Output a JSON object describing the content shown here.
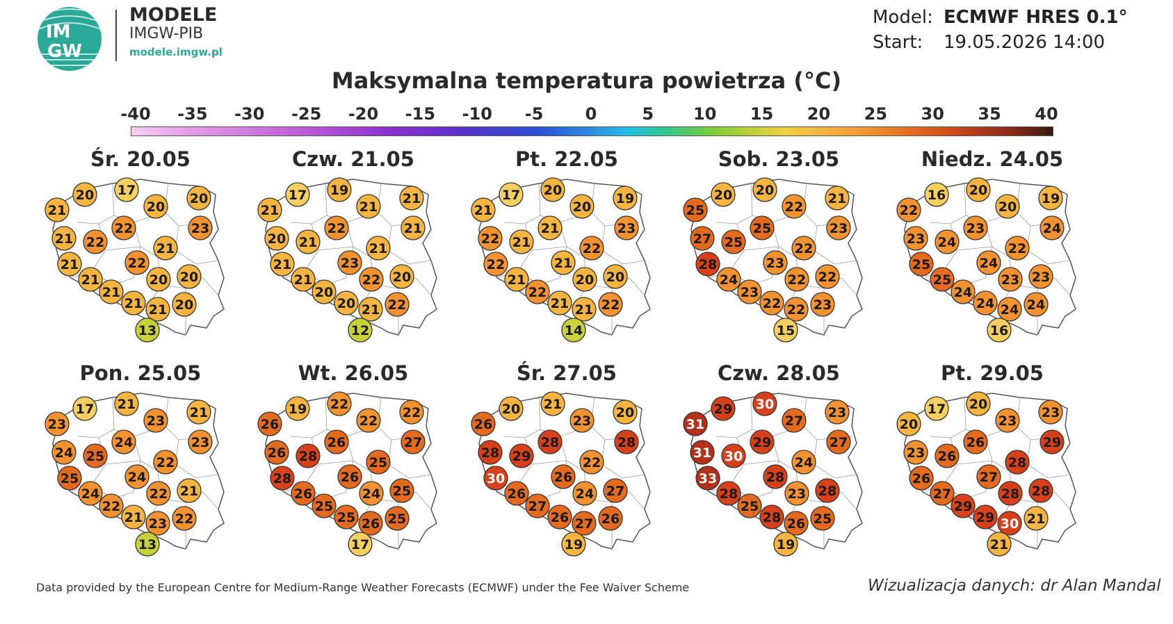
{
  "header": {
    "logo_text_top": "IM",
    "logo_text_bottom": "GW",
    "brand_title": "MODELE",
    "brand_subtitle": "IMGW-PIB",
    "brand_url": "modele.imgw.pl",
    "model_label": "Model:",
    "model_value": "ECMWF HRES 0.1°",
    "start_label": "Start:",
    "start_value": "19.05.2026 14:00"
  },
  "title": "Maksymalna temperatura powietrza (°C)",
  "legend": {
    "ticks": [
      "-40",
      "-35",
      "-30",
      "-25",
      "-20",
      "-15",
      "-10",
      "-5",
      "0",
      "5",
      "10",
      "15",
      "20",
      "25",
      "30",
      "35",
      "40"
    ]
  },
  "colors": {
    "temp_cold": "#c9d13a",
    "temp_cool": "#f5d060",
    "temp_mild": "#f5b540",
    "temp_warm": "#f29230",
    "temp_hot": "#e36a1e",
    "temp_very_hot": "#d6401a",
    "temp_extreme": "#b3311a",
    "country_fill": "#ffffff",
    "border": "#9a9a9a"
  },
  "days": [
    {
      "label": "Śr. 20.05",
      "temps": [
        21,
        20,
        17,
        20,
        20,
        21,
        22,
        22,
        21,
        21,
        22,
        23,
        21,
        20,
        20,
        21,
        21,
        21,
        20,
        13
      ]
    },
    {
      "label": "Czw. 21.05",
      "temps": [
        21,
        17,
        19,
        21,
        21,
        20,
        21,
        22,
        21,
        21,
        23,
        21,
        21,
        22,
        20,
        20,
        20,
        21,
        22,
        12
      ]
    },
    {
      "label": "Pt. 22.05",
      "temps": [
        21,
        17,
        20,
        20,
        19,
        22,
        21,
        21,
        22,
        22,
        21,
        23,
        21,
        20,
        20,
        22,
        21,
        21,
        22,
        14
      ]
    },
    {
      "label": "Sob. 23.05",
      "temps": [
        25,
        20,
        20,
        22,
        21,
        27,
        25,
        25,
        22,
        28,
        23,
        23,
        24,
        22,
        22,
        23,
        22,
        22,
        23,
        15
      ]
    },
    {
      "label": "Niedz. 24.05",
      "temps": [
        22,
        16,
        20,
        20,
        19,
        23,
        24,
        23,
        22,
        25,
        24,
        24,
        25,
        23,
        23,
        24,
        24,
        24,
        24,
        16
      ]
    },
    {
      "label": "Pon. 25.05",
      "temps": [
        23,
        17,
        21,
        23,
        21,
        24,
        25,
        24,
        22,
        25,
        24,
        23,
        24,
        22,
        21,
        22,
        21,
        23,
        22,
        13
      ]
    },
    {
      "label": "Wt. 26.05",
      "temps": [
        26,
        19,
        22,
        22,
        22,
        26,
        28,
        26,
        25,
        28,
        26,
        27,
        26,
        24,
        25,
        25,
        25,
        26,
        25,
        17
      ]
    },
    {
      "label": "Śr. 27.05",
      "temps": [
        26,
        20,
        21,
        23,
        20,
        28,
        29,
        28,
        22,
        30,
        26,
        28,
        26,
        24,
        27,
        27,
        26,
        27,
        26,
        19
      ]
    },
    {
      "label": "Czw. 28.05",
      "temps": [
        31,
        29,
        30,
        27,
        23,
        31,
        30,
        29,
        24,
        33,
        28,
        27,
        28,
        23,
        28,
        25,
        28,
        26,
        25,
        19
      ]
    },
    {
      "label": "Pt. 29.05",
      "temps": [
        20,
        17,
        20,
        23,
        23,
        23,
        26,
        26,
        28,
        26,
        27,
        29,
        27,
        28,
        28,
        29,
        29,
        30,
        21,
        21
      ]
    }
  ],
  "footer": {
    "source": "Data provided by the European Centre for Medium-Range Weather Forecasts (ECMWF) under the Fee Waiver Scheme",
    "credit": "Wizualizacja danych: dr Alan Mandal"
  }
}
